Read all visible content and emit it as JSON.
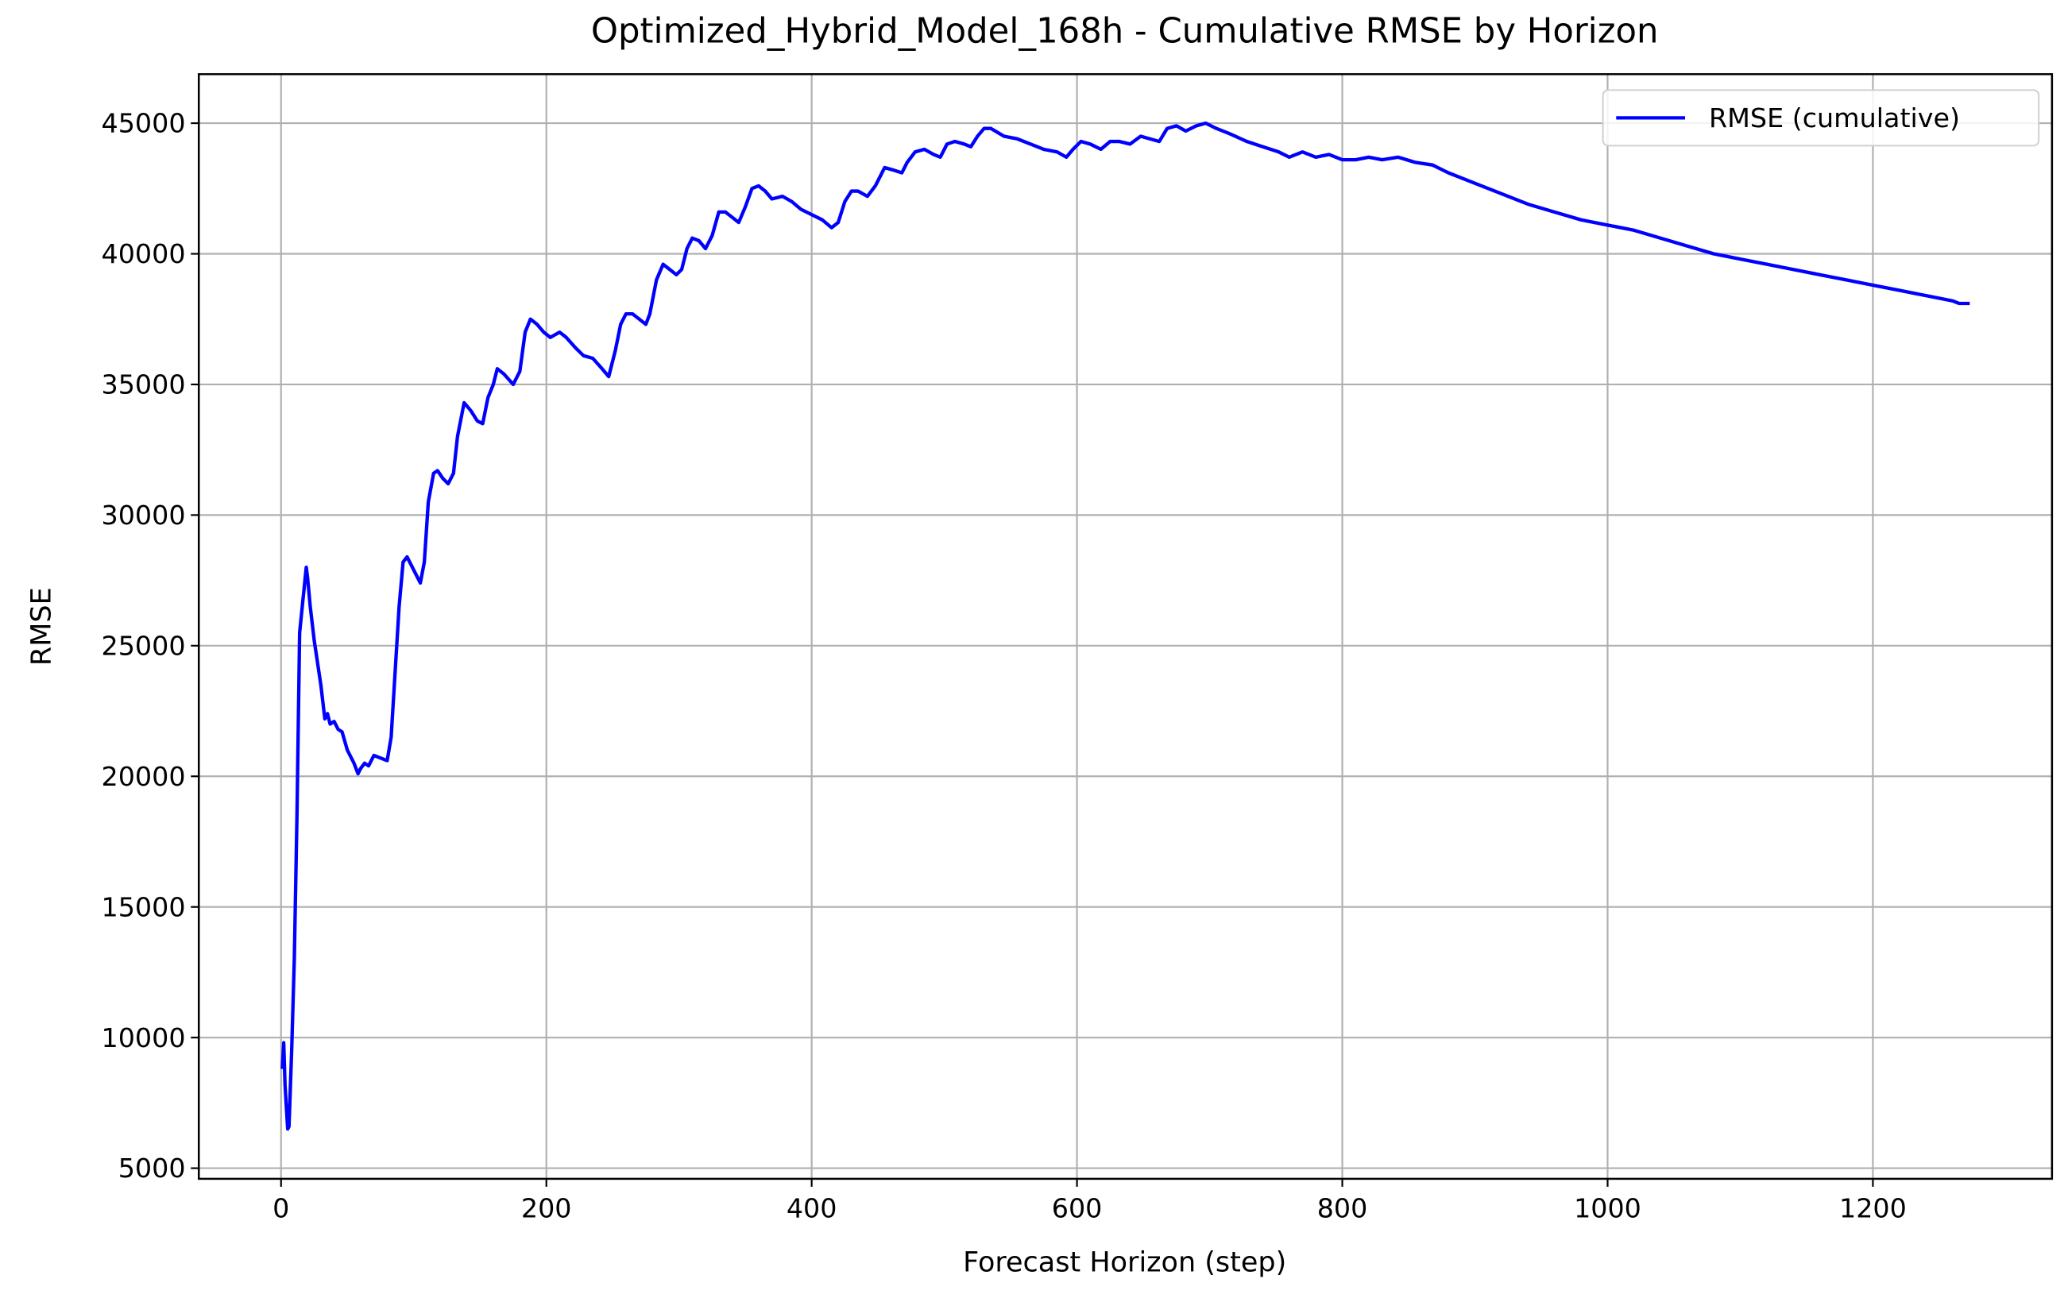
{
  "chart_data": {
    "type": "line",
    "title": "Optimized_Hybrid_Model_168h - Cumulative RMSE by Horizon",
    "xlabel": "Forecast Horizon (step)",
    "ylabel": "RMSE",
    "x": [
      1,
      2,
      3,
      5,
      6,
      8,
      10,
      12,
      14,
      16,
      18,
      19,
      20,
      22,
      25,
      30,
      33,
      35,
      37,
      40,
      43,
      46,
      50,
      55,
      58,
      60,
      63,
      66,
      70,
      75,
      80,
      83,
      86,
      89,
      92,
      95,
      100,
      105,
      108,
      111,
      115,
      118,
      122,
      126,
      130,
      133,
      138,
      143,
      148,
      152,
      156,
      160,
      163,
      168,
      175,
      180,
      184,
      188,
      193,
      198,
      203,
      210,
      215,
      222,
      228,
      235,
      242,
      247,
      252,
      256,
      260,
      265,
      270,
      275,
      278,
      283,
      288,
      293,
      298,
      302,
      306,
      310,
      315,
      320,
      325,
      330,
      335,
      340,
      345,
      350,
      355,
      360,
      365,
      370,
      378,
      385,
      392,
      400,
      408,
      415,
      420,
      425,
      430,
      435,
      442,
      448,
      455,
      462,
      468,
      472,
      478,
      485,
      492,
      497,
      502,
      508,
      515,
      520,
      525,
      530,
      535,
      545,
      555,
      565,
      575,
      585,
      592,
      597,
      603,
      610,
      618,
      625,
      632,
      640,
      648,
      655,
      662,
      668,
      675,
      682,
      690,
      697,
      705,
      715,
      728,
      740,
      752,
      760,
      770,
      780,
      790,
      800,
      810,
      820,
      830,
      842,
      855,
      868,
      880,
      900,
      920,
      940,
      960,
      980,
      1000,
      1020,
      1040,
      1060,
      1080,
      1100,
      1120,
      1140,
      1160,
      1180,
      1200,
      1220,
      1240,
      1260,
      1265,
      1273
    ],
    "series": [
      {
        "name": "RMSE (cumulative)",
        "color": "#0000ff",
        "values": [
          8800,
          9800,
          8200,
          6500,
          6600,
          9500,
          13000,
          18500,
          25500,
          26500,
          27500,
          28000,
          27600,
          26500,
          25200,
          23500,
          22200,
          22400,
          22000,
          22100,
          21800,
          21700,
          21000,
          20500,
          20100,
          20300,
          20500,
          20400,
          20800,
          20700,
          20600,
          21500,
          24000,
          26500,
          28200,
          28400,
          27900,
          27400,
          28200,
          30500,
          31600,
          31700,
          31400,
          31200,
          31600,
          33000,
          34300,
          34000,
          33600,
          33500,
          34500,
          35000,
          35600,
          35400,
          35000,
          35500,
          37000,
          37500,
          37300,
          37000,
          36800,
          37000,
          36800,
          36400,
          36100,
          36000,
          35600,
          35300,
          36300,
          37300,
          37700,
          37700,
          37500,
          37300,
          37700,
          39000,
          39600,
          39400,
          39200,
          39400,
          40200,
          40600,
          40500,
          40200,
          40700,
          41600,
          41600,
          41400,
          41200,
          41800,
          42500,
          42600,
          42400,
          42100,
          42200,
          42000,
          41700,
          41500,
          41300,
          41000,
          41200,
          42000,
          42400,
          42400,
          42200,
          42600,
          43300,
          43200,
          43100,
          43500,
          43900,
          44000,
          43800,
          43700,
          44200,
          44300,
          44200,
          44100,
          44500,
          44800,
          44800,
          44500,
          44400,
          44200,
          44000,
          43900,
          43700,
          44000,
          44300,
          44200,
          44000,
          44300,
          44300,
          44200,
          44500,
          44400,
          44300,
          44800,
          44900,
          44700,
          44900,
          45000,
          44800,
          44600,
          44300,
          44100,
          43900,
          43700,
          43900,
          43700,
          43800,
          43600,
          43600,
          43700,
          43600,
          43700,
          43500,
          43400,
          43100,
          42700,
          42300,
          41900,
          41600,
          41300,
          41100,
          40900,
          40600,
          40300,
          40000,
          39800,
          39600,
          39400,
          39200,
          39000,
          38800,
          38600,
          38400,
          38200,
          38100,
          38100
        ]
      }
    ],
    "xlim": [
      -62,
      1335
    ],
    "ylim": [
      4594,
      46876
    ],
    "xticks": [
      0,
      200,
      400,
      600,
      800,
      1000,
      1200
    ],
    "yticks": [
      5000,
      10000,
      15000,
      20000,
      25000,
      30000,
      35000,
      40000,
      45000
    ],
    "grid": true,
    "legend": "upper right"
  }
}
